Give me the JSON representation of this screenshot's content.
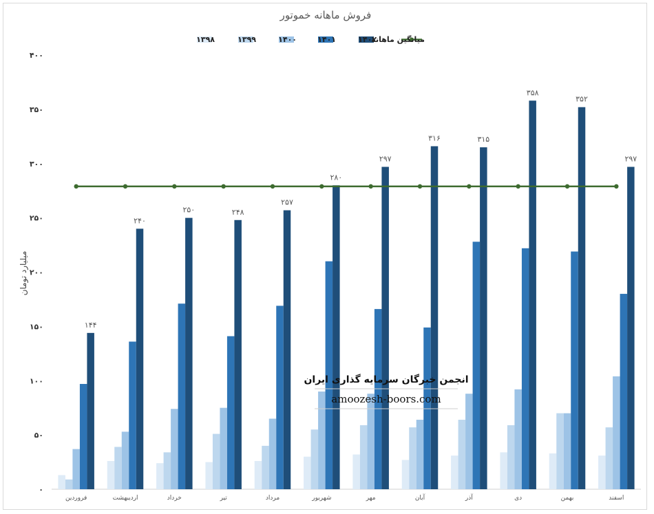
{
  "chart_data": {
    "type": "bar",
    "title": "فروش ماهانه خموتور",
    "ylabel": "میلیارد تومان",
    "xlabel": "",
    "ylim": [
      0,
      400
    ],
    "yticks": [
      0,
      50,
      100,
      150,
      200,
      250,
      300,
      350,
      400
    ],
    "ytick_labels": [
      "۰",
      "۵۰",
      "۱۰۰",
      "۱۵۰",
      "۲۰۰",
      "۲۵۰",
      "۳۰۰",
      "۳۵۰",
      "۴۰۰"
    ],
    "categories": [
      "فروردین",
      "اردیبهشت",
      "خرداد",
      "تیر",
      "مرداد",
      "شهریور",
      "مهر",
      "آبان",
      "آذر",
      "دی",
      "بهمن",
      "اسفند"
    ],
    "series": [
      {
        "name": "۱۳۹۸",
        "color": "#deebf7",
        "values": [
          13,
          26,
          24,
          25,
          26,
          30,
          32,
          27,
          31,
          34,
          33,
          31
        ]
      },
      {
        "name": "۱۳۹۹",
        "color": "#bdd7ee",
        "values": [
          9,
          39,
          34,
          51,
          40,
          55,
          59,
          57,
          64,
          59,
          70,
          57
        ]
      },
      {
        "name": "۱۴۰۰",
        "color": "#9dc3e6",
        "values": [
          37,
          53,
          74,
          75,
          65,
          90,
          88,
          64,
          88,
          92,
          70,
          104
        ]
      },
      {
        "name": "۱۴۰۱",
        "color": "#2e75b6",
        "values": [
          97,
          136,
          171,
          141,
          169,
          210,
          166,
          149,
          228,
          222,
          219,
          180
        ]
      },
      {
        "name": "۱۴۰۲",
        "color": "#1f4e79",
        "values": [
          144,
          240,
          250,
          248,
          257,
          280,
          297,
          316,
          315,
          358,
          352,
          297
        ],
        "data_labels": [
          "۱۴۴",
          "۲۴۰",
          "۲۵۰",
          "۲۴۸",
          "۲۵۷",
          "۲۸۰",
          "۲۹۷",
          "۳۱۶",
          "۳۱۵",
          "۳۵۸",
          "۳۵۲",
          "۲۹۷"
        ]
      }
    ],
    "average_line": {
      "name": "میانگین ماهانه",
      "color": "#3d6b2f",
      "value": 279
    },
    "legend_position": "top",
    "grid": false
  },
  "watermark": {
    "title": "انجمن خبرگان سرمایه گذاری ایران",
    "url": "amoozesh-boors.com"
  }
}
